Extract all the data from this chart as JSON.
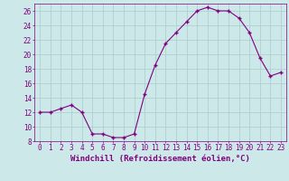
{
  "x": [
    0,
    1,
    2,
    3,
    4,
    5,
    6,
    7,
    8,
    9,
    10,
    11,
    12,
    13,
    14,
    15,
    16,
    17,
    18,
    19,
    20,
    21,
    22,
    23
  ],
  "y": [
    12.0,
    12.0,
    12.5,
    13.0,
    12.0,
    9.0,
    9.0,
    8.5,
    8.5,
    9.0,
    14.5,
    18.5,
    21.5,
    23.0,
    24.5,
    26.0,
    26.5,
    26.0,
    26.0,
    25.0,
    23.0,
    19.5,
    17.0,
    17.5
  ],
  "line_color": "#800080",
  "marker": "+",
  "marker_size": 3,
  "bg_color": "#cce8e8",
  "grid_color": "#aacccc",
  "axis_color": "#800080",
  "xlabel": "Windchill (Refroidissement éolien,°C)",
  "xlabel_fontsize": 6.5,
  "tick_fontsize": 5.5,
  "ylim": [
    8,
    27
  ],
  "xlim": [
    -0.5,
    23.5
  ],
  "yticks": [
    8,
    10,
    12,
    14,
    16,
    18,
    20,
    22,
    24,
    26
  ],
  "xticks": [
    0,
    1,
    2,
    3,
    4,
    5,
    6,
    7,
    8,
    9,
    10,
    11,
    12,
    13,
    14,
    15,
    16,
    17,
    18,
    19,
    20,
    21,
    22,
    23
  ]
}
